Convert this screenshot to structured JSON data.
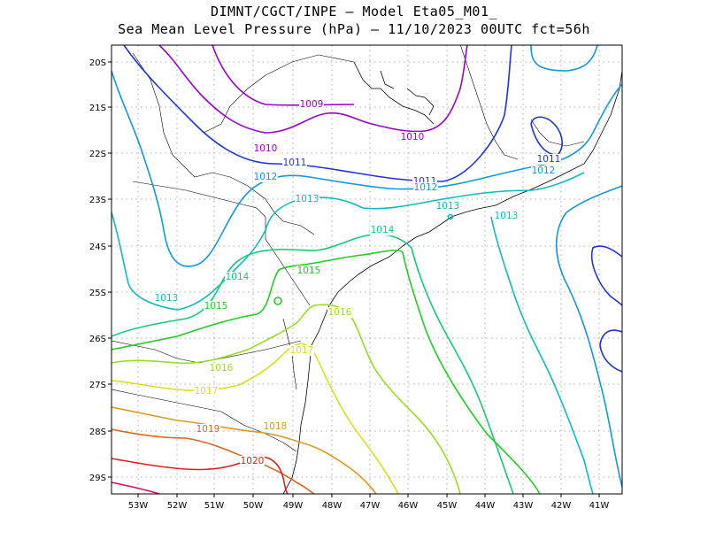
{
  "header": {
    "line1": "DIMNT/CGCT/INPE —  Model Eta05_M01_",
    "line2": "Sea Mean Level Pressure (hPa) — 11/10/2023 00UTC fct=56h"
  },
  "map": {
    "lat_ticks": [
      "20S",
      "21S",
      "22S",
      "23S",
      "24S",
      "25S",
      "26S",
      "27S",
      "28S",
      "29S"
    ],
    "lon_ticks": [
      "53W",
      "52W",
      "51W",
      "50W",
      "49W",
      "48W",
      "47W",
      "46W",
      "45W",
      "44W",
      "43W",
      "42W",
      "41W"
    ],
    "gridlines": true,
    "isobar_labels": [
      {
        "text": "1009",
        "color": "#9900cc"
      },
      {
        "text": "1010",
        "color": "#9900cc"
      },
      {
        "text": "1010",
        "color": "#9900cc"
      },
      {
        "text": "1011",
        "color": "#2233dd"
      },
      {
        "text": "1011",
        "color": "#2233dd"
      },
      {
        "text": "1011",
        "color": "#2233dd"
      },
      {
        "text": "1012",
        "color": "#1199dd"
      },
      {
        "text": "1012",
        "color": "#1199dd"
      },
      {
        "text": "1012",
        "color": "#1199dd"
      },
      {
        "text": "1013",
        "color": "#11bbbb"
      },
      {
        "text": "1013",
        "color": "#11bbbb"
      },
      {
        "text": "1013",
        "color": "#11bbbb"
      },
      {
        "text": "1013",
        "color": "#11bbbb"
      },
      {
        "text": "1014",
        "color": "#11cc77"
      },
      {
        "text": "1014",
        "color": "#11cc77"
      },
      {
        "text": "1015",
        "color": "#22cc22"
      },
      {
        "text": "1015",
        "color": "#22cc22"
      },
      {
        "text": "1016",
        "color": "#99dd22"
      },
      {
        "text": "1016",
        "color": "#99dd22"
      },
      {
        "text": "1017",
        "color": "#dddd22"
      },
      {
        "text": "1017",
        "color": "#dddd22"
      },
      {
        "text": "1018",
        "color": "#dd9922"
      },
      {
        "text": "1019",
        "color": "#dd6622"
      },
      {
        "text": "1020",
        "color": "#dd2222"
      }
    ]
  }
}
